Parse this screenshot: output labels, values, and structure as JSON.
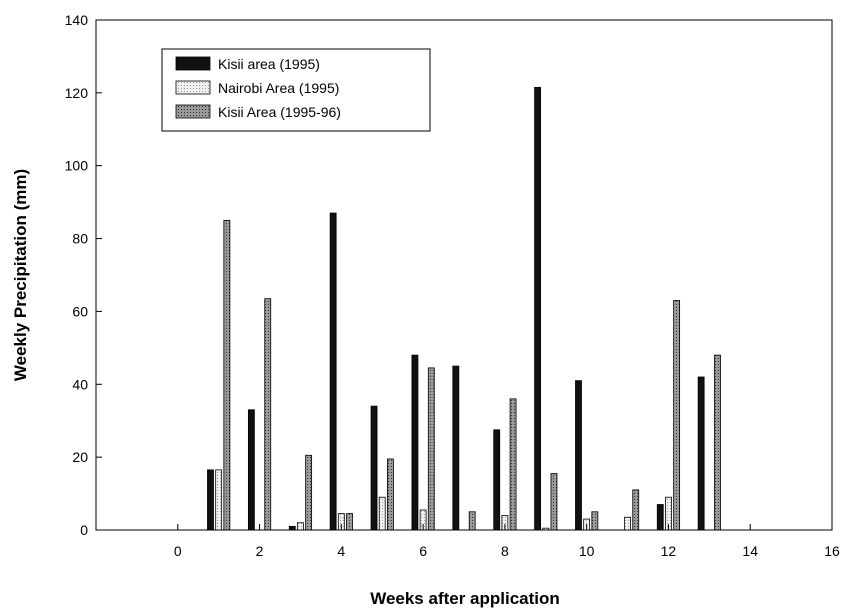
{
  "chart_data": {
    "type": "bar",
    "title": "",
    "xlabel": "Weeks after application",
    "ylabel": "Weekly Precipitation (mm)",
    "xlim": [
      -2,
      16
    ],
    "ylim": [
      0,
      140
    ],
    "xticks": [
      0,
      2,
      4,
      6,
      8,
      10,
      12,
      14,
      16
    ],
    "yticks": [
      0,
      20,
      40,
      60,
      80,
      100,
      120,
      140
    ],
    "grid": false,
    "legend_position": "top-left",
    "series": [
      {
        "name": "Kisii area (1995)",
        "color": "#111111",
        "pattern": "solid",
        "points": [
          {
            "x": 0.8,
            "y": 16.5
          },
          {
            "x": 1.8,
            "y": 33
          },
          {
            "x": 2.8,
            "y": 1
          },
          {
            "x": 3.8,
            "y": 87
          },
          {
            "x": 4.8,
            "y": 34
          },
          {
            "x": 5.8,
            "y": 48
          },
          {
            "x": 6.8,
            "y": 45
          },
          {
            "x": 7.8,
            "y": 27.5
          },
          {
            "x": 8.8,
            "y": 121.5
          },
          {
            "x": 9.8,
            "y": 41
          },
          {
            "x": 11.8,
            "y": 7
          },
          {
            "x": 12.8,
            "y": 42
          }
        ]
      },
      {
        "name": "Nairobi Area (1995)",
        "color": "#e2e2e2",
        "pattern": "light-dots",
        "points": [
          {
            "x": 1.0,
            "y": 16.5
          },
          {
            "x": 3.0,
            "y": 2
          },
          {
            "x": 4.0,
            "y": 4.5
          },
          {
            "x": 5.0,
            "y": 9
          },
          {
            "x": 6.0,
            "y": 5.5
          },
          {
            "x": 8.0,
            "y": 4
          },
          {
            "x": 9.0,
            "y": 0.5
          },
          {
            "x": 10.0,
            "y": 3
          },
          {
            "x": 11.0,
            "y": 3.5
          },
          {
            "x": 12.0,
            "y": 9
          }
        ]
      },
      {
        "name": "Kisii Area (1995-96)",
        "color": "#8a8a8a",
        "pattern": "dark-dots",
        "points": [
          {
            "x": 1.2,
            "y": 85
          },
          {
            "x": 2.2,
            "y": 63.5
          },
          {
            "x": 3.2,
            "y": 20.5
          },
          {
            "x": 4.2,
            "y": 4.5
          },
          {
            "x": 5.2,
            "y": 19.5
          },
          {
            "x": 6.2,
            "y": 44.5
          },
          {
            "x": 7.2,
            "y": 5
          },
          {
            "x": 8.2,
            "y": 36
          },
          {
            "x": 9.2,
            "y": 15.5
          },
          {
            "x": 10.2,
            "y": 5
          },
          {
            "x": 11.2,
            "y": 11
          },
          {
            "x": 12.2,
            "y": 63
          },
          {
            "x": 13.2,
            "y": 48
          }
        ]
      }
    ]
  }
}
